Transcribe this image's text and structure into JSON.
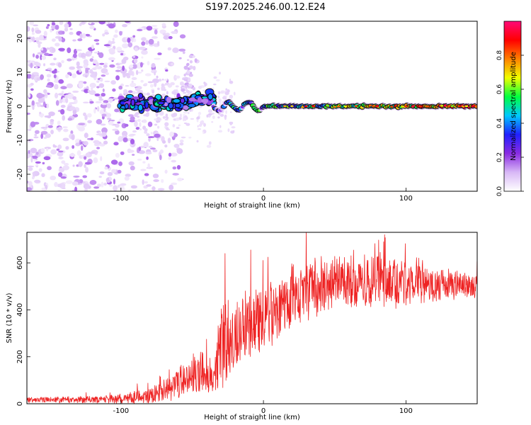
{
  "title": "S197.2025.246.00.12.E24",
  "chart_data": [
    {
      "type": "heatmap",
      "panel": "spectrogram",
      "xlabel": "Height of straight line (km)",
      "ylabel": "Frequency (Hz)",
      "xlim": [
        -166,
        150
      ],
      "ylim": [
        -25,
        25
      ],
      "xticks": [
        -100,
        0,
        100
      ],
      "yticks": [
        -20,
        -10,
        0,
        10,
        20
      ],
      "colorbar": {
        "label": "Normalized spectral amplitude",
        "range": [
          0,
          1
        ],
        "ticks": [
          0.0,
          0.2,
          0.4,
          0.6,
          0.8
        ],
        "colors": [
          "#ffffff",
          "#d8b8f6",
          "#8a2be2",
          "#2020ff",
          "#00c8ff",
          "#00ff40",
          "#f0ff00",
          "#ff8000",
          "#ff0000",
          "#ff0a78"
        ]
      },
      "features": {
        "noise_region_x": [
          -166,
          -85
        ],
        "noise_freq_spread_hz": 25,
        "transition_region_x": [
          -100,
          -35
        ],
        "transition_freq_spread_hz": 3,
        "carrier_region_x": [
          -35,
          150
        ],
        "carrier_freq_hz": 0,
        "carrier_peak_amplitude": 0.95,
        "plateau_before_transition_freq_hz": 3
      }
    },
    {
      "type": "line",
      "panel": "snr",
      "xlabel": "Height of straight line (km)",
      "ylabel": "SNR (10 * v/v)",
      "xlim": [
        -166,
        150
      ],
      "ylim": [
        0,
        730
      ],
      "xticks": [
        -100,
        0,
        100
      ],
      "yticks": [
        0,
        200,
        400,
        600
      ],
      "color": "#ee2222",
      "profile_x": [
        -166,
        -120,
        -90,
        -80,
        -70,
        -60,
        -50,
        -40,
        -35,
        -30,
        -25,
        -20,
        -10,
        0,
        10,
        20,
        30,
        40,
        50,
        60,
        80,
        100,
        120,
        140,
        150
      ],
      "profile_snr_mean": [
        15,
        18,
        25,
        35,
        55,
        90,
        130,
        110,
        90,
        230,
        260,
        300,
        330,
        360,
        400,
        440,
        480,
        505,
        515,
        520,
        520,
        515,
        510,
        505,
        500
      ],
      "profile_snr_spread": [
        12,
        15,
        25,
        35,
        45,
        70,
        90,
        60,
        50,
        180,
        190,
        170,
        150,
        140,
        130,
        120,
        120,
        120,
        120,
        120,
        110,
        100,
        70,
        60,
        55
      ],
      "spikes": [
        {
          "x": -40,
          "y": 275
        },
        {
          "x": -27,
          "y": 640
        },
        {
          "x": -9,
          "y": 655
        },
        {
          "x": 30,
          "y": 740
        },
        {
          "x": 85,
          "y": 720
        }
      ]
    }
  ]
}
